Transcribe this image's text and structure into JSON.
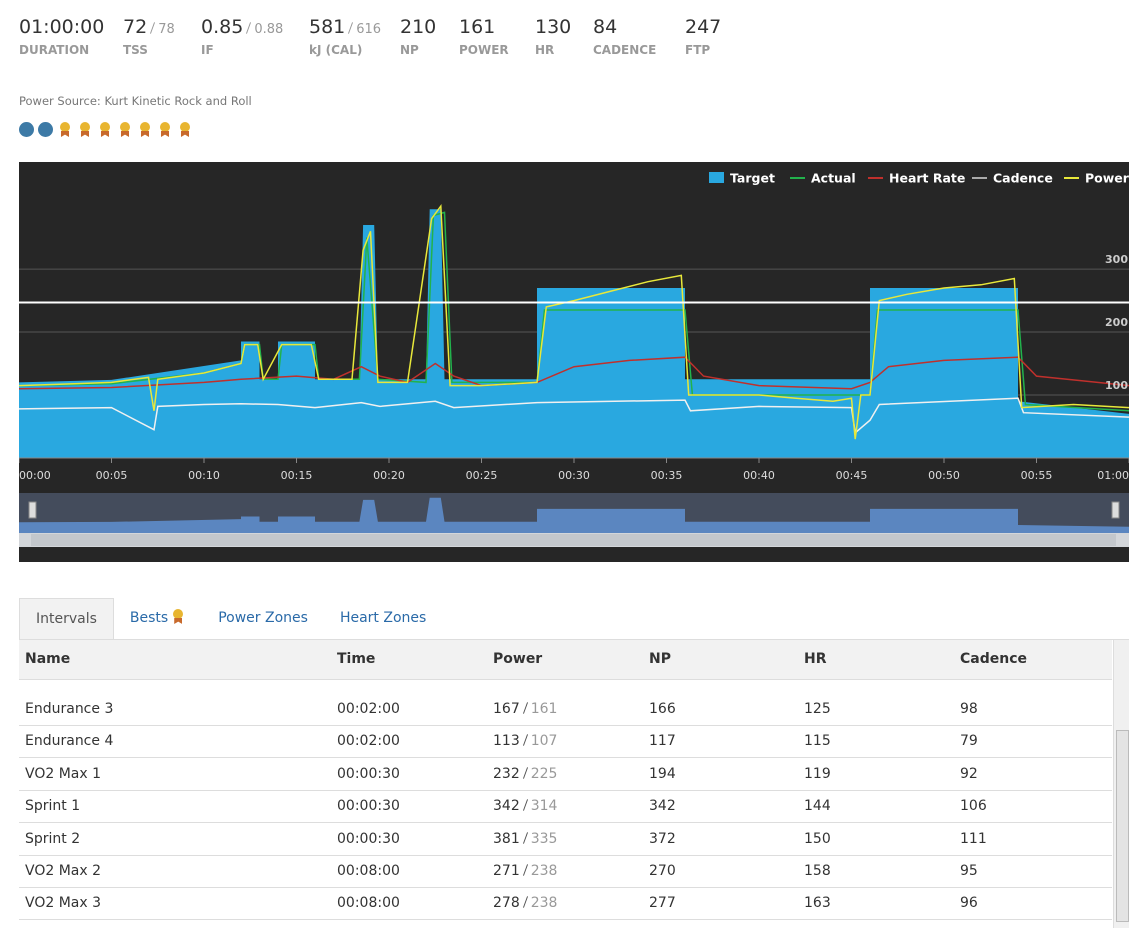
{
  "stats": [
    {
      "value": "01:00:00",
      "label": "DURATION"
    },
    {
      "value": 72,
      "secondary": 78,
      "label": "TSS"
    },
    {
      "value": 0.85,
      "secondary": 0.88,
      "label": "IF"
    },
    {
      "value": 581,
      "secondary": 616,
      "label": "kJ (CAL)"
    },
    {
      "value": 210,
      "label": "NP"
    },
    {
      "value": 161,
      "label": "POWER"
    },
    {
      "value": 130,
      "label": "HR"
    },
    {
      "value": 84,
      "label": "CADENCE"
    },
    {
      "value": 247,
      "label": "FTP"
    }
  ],
  "power_source": {
    "label": "Power Source:",
    "value": "Kurt Kinetic Rock and Roll"
  },
  "chart_data": {
    "type": "line",
    "xlim": [
      0,
      60
    ],
    "ylim": [
      0,
      470
    ],
    "xticks": [
      {
        "value": 0,
        "label": "00:00"
      },
      {
        "value": 5,
        "label": "00:05"
      },
      {
        "value": 10,
        "label": "00:10"
      },
      {
        "value": 15,
        "label": "00:15"
      },
      {
        "value": 20,
        "label": "00:20"
      },
      {
        "value": 25,
        "label": "00:25"
      },
      {
        "value": 30,
        "label": "00:30"
      },
      {
        "value": 35,
        "label": "00:35"
      },
      {
        "value": 40,
        "label": "00:40"
      },
      {
        "value": 45,
        "label": "00:45"
      },
      {
        "value": 50,
        "label": "00:50"
      },
      {
        "value": 55,
        "label": "00:55"
      },
      {
        "value": 60,
        "label": "01:00"
      }
    ],
    "yticks": [
      100,
      200,
      300
    ],
    "grid": true,
    "legend": "top-right",
    "series": [
      {
        "name": "Target",
        "color": "#29a8e0",
        "style": "area",
        "x": [
          0,
          5,
          12,
          12,
          13,
          13,
          14,
          14,
          16,
          16,
          18.4,
          18.6,
          19.2,
          19.4,
          22,
          22.2,
          22.8,
          23,
          28,
          28,
          36,
          36,
          46,
          46,
          54,
          54,
          60
        ],
        "values": [
          120,
          124,
          155,
          185,
          185,
          125,
          125,
          185,
          185,
          125,
          125,
          370,
          370,
          125,
          125,
          395,
          395,
          125,
          125,
          270,
          270,
          125,
          125,
          270,
          270,
          90,
          70
        ]
      },
      {
        "name": "Actual",
        "color": "#22b24c",
        "style": "line",
        "x": [
          0,
          5,
          10,
          12,
          12.2,
          13,
          13.2,
          14,
          14.2,
          16,
          16.2,
          18.4,
          18.8,
          19.4,
          22,
          22.4,
          23,
          23.4,
          28,
          28.4,
          36,
          36.4,
          46,
          46.4,
          54,
          54.4,
          60
        ],
        "values": [
          115,
          118,
          135,
          150,
          180,
          180,
          125,
          125,
          180,
          180,
          125,
          125,
          350,
          125,
          120,
          385,
          390,
          120,
          120,
          235,
          235,
          100,
          100,
          235,
          235,
          85,
          75
        ]
      },
      {
        "name": "Heart Rate",
        "color": "#c0302c",
        "style": "line",
        "x": [
          0,
          5,
          10,
          12,
          15,
          17,
          18.5,
          19.5,
          21,
          22.5,
          23.5,
          25,
          28,
          30,
          33,
          36,
          37,
          40,
          45,
          46,
          47,
          50,
          54,
          55,
          60
        ],
        "values": [
          110,
          112,
          120,
          125,
          130,
          125,
          145,
          130,
          120,
          150,
          130,
          115,
          120,
          145,
          155,
          160,
          130,
          115,
          110,
          120,
          145,
          155,
          160,
          130,
          115
        ]
      },
      {
        "name": "Cadence",
        "color": "#f0f0f0",
        "style": "line",
        "x": [
          0,
          5,
          7.3,
          7.5,
          10,
          12,
          14,
          16,
          18.5,
          19.5,
          22.5,
          23.5,
          28,
          36,
          36.3,
          40,
          45,
          45.2,
          46,
          46.5,
          54,
          54.3,
          60
        ],
        "values": [
          78,
          80,
          45,
          82,
          85,
          86,
          85,
          80,
          88,
          82,
          90,
          80,
          88,
          92,
          75,
          82,
          80,
          40,
          60,
          85,
          95,
          72,
          65
        ]
      },
      {
        "name": "Power",
        "color": "#e8e83a",
        "style": "line",
        "x": [
          0,
          3,
          5,
          7,
          7.3,
          7.5,
          10,
          12,
          12.2,
          12.9,
          13.2,
          14.2,
          15.8,
          16.2,
          18,
          18.6,
          19,
          19.4,
          21,
          22.3,
          22.8,
          23.3,
          25,
          28,
          28.5,
          30,
          32,
          34,
          35.8,
          36.2,
          40,
          42,
          44,
          45,
          45.2,
          45.5,
          46,
          46.5,
          48,
          50,
          52,
          53.8,
          54.2,
          57,
          60
        ],
        "values": [
          115,
          118,
          120,
          128,
          75,
          125,
          135,
          150,
          180,
          180,
          125,
          180,
          180,
          125,
          125,
          330,
          360,
          120,
          120,
          380,
          400,
          115,
          115,
          120,
          240,
          250,
          265,
          280,
          290,
          100,
          100,
          95,
          90,
          95,
          30,
          100,
          100,
          250,
          260,
          270,
          275,
          285,
          80,
          85,
          80
        ]
      }
    ]
  },
  "tabs": [
    "Intervals",
    "Bests",
    "Power Zones",
    "Heart Zones"
  ],
  "table": {
    "columns": [
      "Name",
      "Time",
      "Power",
      "NP",
      "HR",
      "Cadence"
    ],
    "rows": [
      [
        "Endurance 3",
        "00:02:00",
        {
          "actual": 167,
          "target": 161
        },
        166,
        125,
        98
      ],
      [
        "Endurance 4",
        "00:02:00",
        {
          "actual": 113,
          "target": 107
        },
        117,
        115,
        79
      ],
      [
        "VO2 Max 1",
        "00:00:30",
        {
          "actual": 232,
          "target": 225
        },
        194,
        119,
        92
      ],
      [
        "Sprint 1",
        "00:00:30",
        {
          "actual": 342,
          "target": 314
        },
        342,
        144,
        106
      ],
      [
        "Sprint 2",
        "00:00:30",
        {
          "actual": 381,
          "target": 335
        },
        372,
        150,
        111
      ],
      [
        "VO2 Max 2",
        "00:08:00",
        {
          "actual": 271,
          "target": 238
        },
        270,
        158,
        95
      ],
      [
        "VO2 Max 3",
        "00:08:00",
        {
          "actual": 278,
          "target": 238
        },
        277,
        163,
        96
      ]
    ]
  }
}
